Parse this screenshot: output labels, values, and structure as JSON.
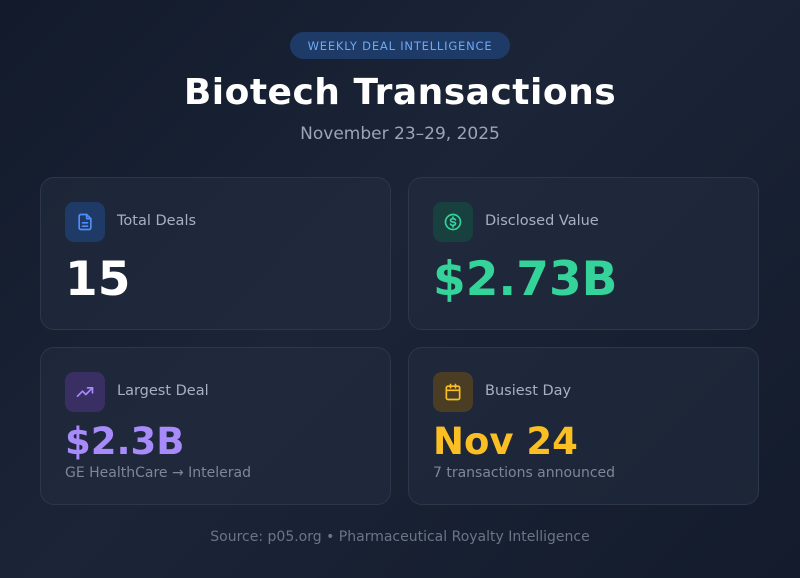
{
  "badge": "WEEKLY DEAL INTELLIGENCE",
  "title": "Biotech Transactions",
  "subtitle": "November 23–29, 2025",
  "cards": {
    "total_deals": {
      "label": "Total Deals",
      "value": "15",
      "icon": "document-icon",
      "color": "#ffffff",
      "icon_color": "#4f8ef7"
    },
    "disclosed_value": {
      "label": "Disclosed Value",
      "value": "$2.73B",
      "icon": "dollar-circle-icon",
      "color": "#34d399",
      "icon_color": "#34d399"
    },
    "largest_deal": {
      "label": "Largest Deal",
      "value": "$2.3B",
      "sub": "GE HealthCare → Intelerad",
      "icon": "trending-up-icon",
      "color": "#a78bfa",
      "icon_color": "#a78bfa"
    },
    "busiest_day": {
      "label": "Busiest Day",
      "value": "Nov 24",
      "sub": "7 transactions announced",
      "icon": "calendar-icon",
      "color": "#fbbf24",
      "icon_color": "#fbbf24"
    }
  },
  "footer": "Source: p05.org • Pharmaceutical Royalty Intelligence"
}
